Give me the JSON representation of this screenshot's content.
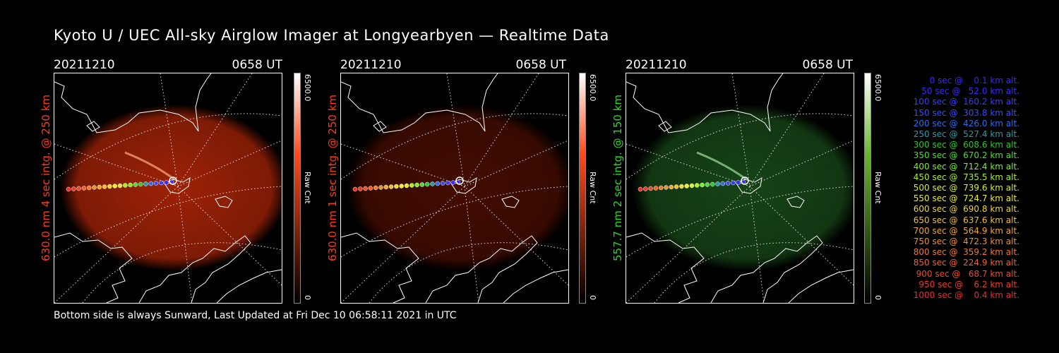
{
  "title": "Kyoto U / UEC All-sky Airglow Imager at Longyearbyen — Realtime Data",
  "footer": "Bottom side is always Sunward, Last Updated at Fri Dec 10 06:58:11 2021 in UTC",
  "panels": [
    {
      "date": "20211210",
      "time": "0658 UT",
      "ylabel": "630.0 nm 4 sec intg. @ 250 km",
      "label_color": "#ff3a1a",
      "cb_max": "6500.0",
      "cb_min": "0",
      "cb_unit": "Raw Cnt",
      "cb_color": "#ff4a1a",
      "glow_color": "#c42a08",
      "glow_opacity": 0.8
    },
    {
      "date": "20211210",
      "time": "0658 UT",
      "ylabel": "630.0 nm 1 sec intg. @ 250 km",
      "label_color": "#ff3a1a",
      "cb_max": "6500.0",
      "cb_min": "0",
      "cb_unit": "Raw Cnt",
      "cb_color": "#ff4a1a",
      "glow_color": "#5a1000",
      "glow_opacity": 0.75
    },
    {
      "date": "20211210",
      "time": "0658 UT",
      "ylabel": "557.7 nm 2 sec intg. @ 150 km",
      "label_color": "#2ad82a",
      "cb_max": "6500.0",
      "cb_min": "0",
      "cb_unit": "Raw Cnt",
      "cb_color": "#6ab82a",
      "glow_color": "#1e5a1e",
      "glow_opacity": 0.75
    }
  ],
  "legend": [
    {
      "text": "   0 sec @    0.1 km alt.",
      "color": "#3a2aff"
    },
    {
      "text": "  50 sec @   52.0 km alt.",
      "color": "#3a2aff"
    },
    {
      "text": " 100 sec @  160.2 km alt.",
      "color": "#3a3aff"
    },
    {
      "text": " 150 sec @  303.8 km alt.",
      "color": "#3a4aff"
    },
    {
      "text": " 200 sec @  426.0 km alt.",
      "color": "#2a6aee"
    },
    {
      "text": " 250 sec @  527.4 km alt.",
      "color": "#2a9aaa"
    },
    {
      "text": " 300 sec @  608.6 km alt.",
      "color": "#2ac82a"
    },
    {
      "text": " 350 sec @  670.2 km alt.",
      "color": "#4ae02a"
    },
    {
      "text": " 400 sec @  712.4 km alt.",
      "color": "#7aee2a"
    },
    {
      "text": " 450 sec @  735.5 km alt.",
      "color": "#aaee2a"
    },
    {
      "text": " 500 sec @  739.6 km alt.",
      "color": "#d8ee2a"
    },
    {
      "text": " 550 sec @  724.7 km alt.",
      "color": "#eeee2a"
    },
    {
      "text": " 600 sec @  690.8 km alt.",
      "color": "#f0d82a"
    },
    {
      "text": " 650 sec @  637.6 km alt.",
      "color": "#f0c02a"
    },
    {
      "text": " 700 sec @  564.9 km alt.",
      "color": "#f0a82a"
    },
    {
      "text": " 750 sec @  472.3 km alt.",
      "color": "#f0902a"
    },
    {
      "text": " 800 sec @  359.2 km alt.",
      "color": "#f0782a"
    },
    {
      "text": " 850 sec @  224.9 km alt.",
      "color": "#f0602a"
    },
    {
      "text": " 900 sec @   68.7 km alt.",
      "color": "#f04a2a"
    },
    {
      "text": " 950 sec @    6.2 km alt.",
      "color": "#f03a2a"
    },
    {
      "text": "1000 sec @    0.4 km alt.",
      "color": "#f02a2a"
    }
  ]
}
